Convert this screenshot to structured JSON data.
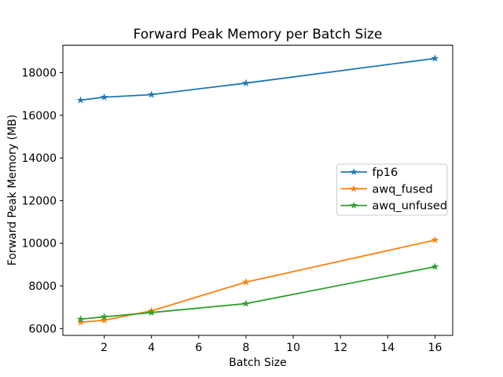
{
  "chart_data": {
    "type": "line",
    "title": "Forward Peak Memory per Batch Size",
    "xlabel": "Batch Size",
    "ylabel": "Forward Peak Memory (MB)",
    "x": [
      1,
      2,
      4,
      8,
      16
    ],
    "series": [
      {
        "name": "fp16",
        "color": "#1f77b4",
        "values": [
          16710,
          16850,
          16970,
          17510,
          18670
        ]
      },
      {
        "name": "awq_fused",
        "color": "#ff7f0e",
        "values": [
          6300,
          6390,
          6830,
          8180,
          10150
        ]
      },
      {
        "name": "awq_unfused",
        "color": "#2ca02c",
        "values": [
          6440,
          6550,
          6750,
          7170,
          8900
        ]
      }
    ],
    "marker": "star",
    "xticks": [
      2,
      4,
      6,
      8,
      10,
      12,
      14,
      16
    ],
    "yticks": [
      6000,
      8000,
      10000,
      12000,
      14000,
      16000,
      18000
    ],
    "xlim": [
      0.25,
      16.75
    ],
    "ylim": [
      5680,
      19290
    ],
    "grid": false,
    "legend_position": "center right",
    "background_color": "#ffffff",
    "spine_color": "#000000",
    "legend_border_color": "#cccccc"
  }
}
